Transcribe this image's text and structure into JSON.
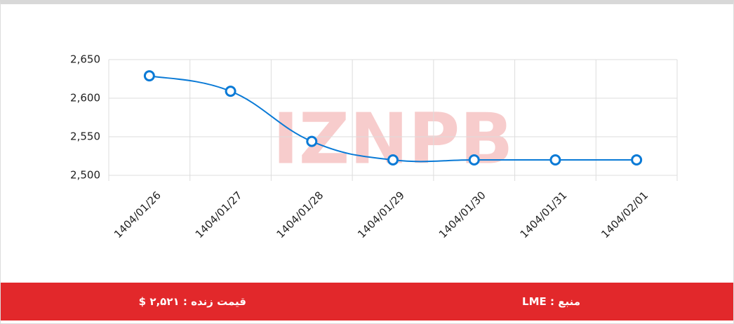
{
  "chart_data": {
    "type": "line",
    "categories": [
      "1404/01/26",
      "1404/01/27",
      "1404/01/28",
      "1404/01/29",
      "1404/01/30",
      "1404/01/31",
      "1404/02/01"
    ],
    "series": [
      {
        "name": null,
        "color": "#0a7ad6",
        "values": [
          2629,
          2609,
          2544,
          2520,
          2520,
          2520,
          2520
        ]
      }
    ],
    "ylim": [
      2500,
      2650
    ],
    "yticks": [
      {
        "value": 2500,
        "label": "2,500"
      },
      {
        "value": 2550,
        "label": "2,550"
      },
      {
        "value": 2600,
        "label": "2,600"
      },
      {
        "value": 2650,
        "label": "2,650"
      }
    ],
    "grid": true,
    "watermark": "IZNPB"
  },
  "footer": {
    "price": "قیمت زنده : ۲,۵۲۱ $",
    "source": "منبع : LME"
  }
}
